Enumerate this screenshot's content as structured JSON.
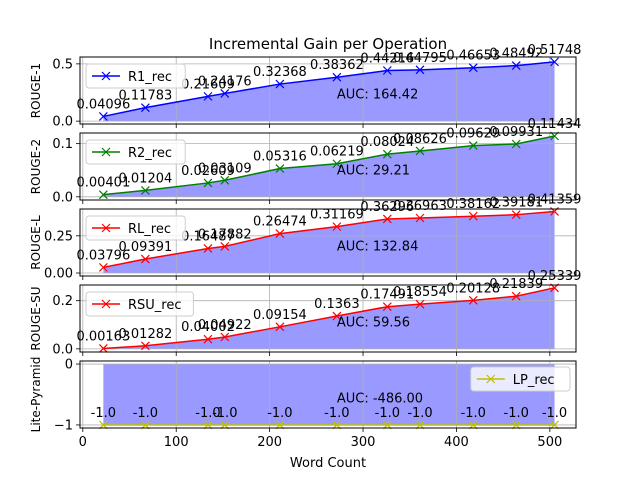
{
  "chart_data": {
    "type": "line",
    "title": "Incremental Gain per Operation",
    "xlabel": "Word Count",
    "xlim": [
      -3,
      528
    ],
    "xticks": [
      0,
      100,
      200,
      300,
      400,
      500
    ],
    "x": [
      22,
      67,
      134,
      152,
      211,
      272,
      326,
      361,
      418,
      464,
      505
    ],
    "panels": [
      {
        "ylabel": "ROUGE-1",
        "ylim": [
          -0.025,
          0.56
        ],
        "yticks": [
          0.0,
          0.5
        ],
        "ytick_labels": [
          "0.0",
          "0.5"
        ],
        "grid": true,
        "legend": {
          "position": "top-left",
          "label": "R1_rec"
        },
        "color": "#0000ff",
        "auc_label": "AUC: 164.42",
        "series": [
          {
            "name": "R1_rec",
            "values": [
              0.04096,
              0.11783,
              0.21609,
              0.24176,
              0.32368,
              0.38362,
              0.44216,
              0.44795,
              0.46653,
              0.48492,
              0.51748
            ]
          }
        ],
        "value_labels": [
          "0.04096",
          "0.11783",
          "0.21609",
          "0.24176",
          "0.32368",
          "0.38362",
          "0.44216",
          "0.44795",
          "0.46653",
          "0.48492",
          "0.51748"
        ]
      },
      {
        "ylabel": "ROUGE-2",
        "ylim": [
          -0.006,
          0.12
        ],
        "yticks": [
          0.0,
          0.1
        ],
        "ytick_labels": [
          "0.0",
          "0.1"
        ],
        "grid": true,
        "legend": {
          "position": "top-left",
          "label": "R2_rec"
        },
        "color": "#008000",
        "auc_label": "AUC: 29.21",
        "series": [
          {
            "name": "R2_rec",
            "values": [
              0.00401,
              0.01204,
              0.02609,
              0.03109,
              0.05316,
              0.06219,
              0.08024,
              0.08626,
              0.09629,
              0.09931,
              0.11434
            ]
          }
        ],
        "value_labels": [
          "0.00401",
          "0.01204",
          "0.02609",
          "0.03109",
          "0.05316",
          "0.06219",
          "0.08024",
          "0.08626",
          "0.09629",
          "0.09931",
          "0.11434"
        ]
      },
      {
        "ylabel": "ROUGE-L",
        "ylim": [
          -0.02,
          0.43
        ],
        "yticks": [
          0.0,
          0.25
        ],
        "ytick_labels": [
          "0.00",
          "0.25"
        ],
        "grid": true,
        "legend": {
          "position": "top-left",
          "label": "RL_rec"
        },
        "color": "#ff0000",
        "auc_label": "AUC: 132.84",
        "series": [
          {
            "name": "RL_rec",
            "values": [
              0.03796,
              0.09391,
              0.16487,
              0.17882,
              0.26474,
              0.31169,
              0.36296,
              0.36963,
              0.38162,
              0.39181,
              0.41359
            ]
          }
        ],
        "value_labels": [
          "0.03796",
          "0.09391",
          "0.16487",
          "0.17882",
          "0.26474",
          "0.31169",
          "0.36296",
          "0.36963",
          "0.38162",
          "0.39181",
          "0.41359"
        ]
      },
      {
        "ylabel": "ROUGE-SU",
        "ylim": [
          -0.013,
          0.265
        ],
        "yticks": [
          0.0,
          0.2
        ],
        "ytick_labels": [
          "0.0",
          "0.2"
        ],
        "grid": true,
        "legend": {
          "position": "top-left",
          "label": "RSU_rec"
        },
        "color": "#ff0000",
        "auc_label": "AUC: 59.56",
        "series": [
          {
            "name": "RSU_rec",
            "values": [
              0.00163,
              0.01282,
              0.04002,
              0.04922,
              0.09154,
              0.1363,
              0.17491,
              0.18554,
              0.20128,
              0.21839,
              0.25339
            ]
          }
        ],
        "value_labels": [
          "0.00163",
          "0.01282",
          "0.04002",
          "0.04922",
          "0.09154",
          "0.1363",
          "0.17491",
          "0.18554",
          "0.20128",
          "0.21839",
          "0.25339"
        ]
      },
      {
        "ylabel": "Lite-Pyramid",
        "ylim": [
          -1.05,
          0.05
        ],
        "yticks": [
          0,
          -1
        ],
        "ytick_labels": [
          "0",
          "−1"
        ],
        "grid": true,
        "legend": {
          "position": "right",
          "label": "LP_rec"
        },
        "color": "#bfbf00",
        "auc_label": "AUC: -486.00",
        "series": [
          {
            "name": "LP_rec",
            "values": [
              -1,
              -1,
              -1,
              -1,
              -1,
              -1,
              -1,
              -1,
              -1,
              -1,
              -1
            ]
          }
        ],
        "value_labels": [
          "-1.0",
          "-1.0",
          "-1.0",
          "-1.0",
          "-1.0",
          "-1.0",
          "-1.0",
          "-1.0",
          "-1.0",
          "-1.0",
          "-1.0"
        ]
      }
    ],
    "fill_color": "#9999ff"
  }
}
